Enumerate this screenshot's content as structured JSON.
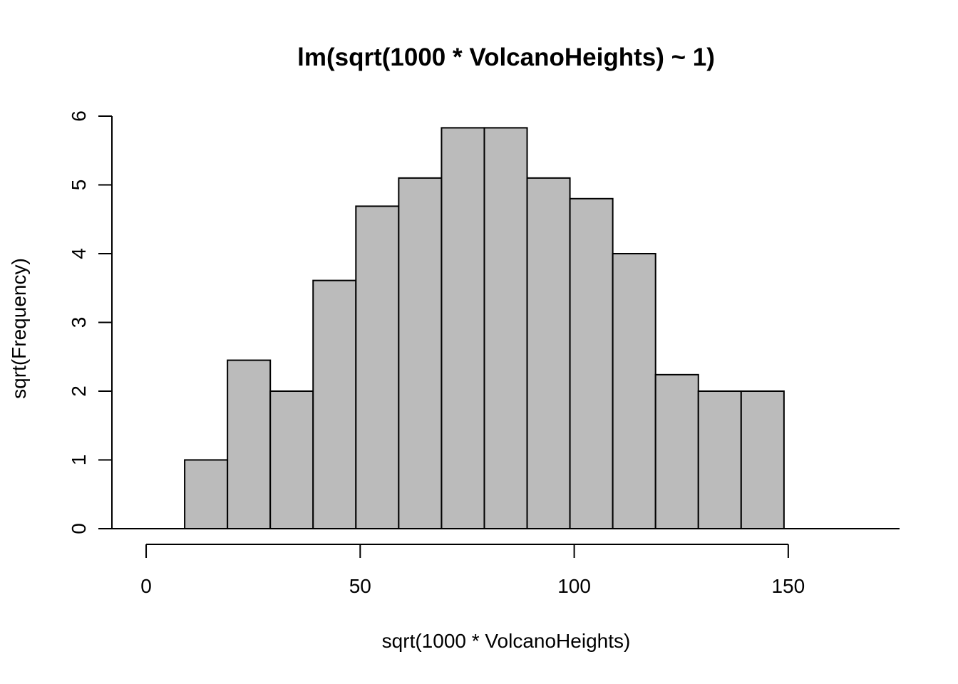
{
  "chart_data": {
    "type": "bar",
    "title": "lm(sqrt(1000 * VolcanoHeights) ~ 1)",
    "xlabel": "sqrt(1000 * VolcanoHeights)",
    "ylabel": "sqrt(Frequency)",
    "xlim": [
      -8,
      176
    ],
    "ylim": [
      0,
      6
    ],
    "bin_width": 10,
    "bin_left_edges": [
      -1,
      9,
      19,
      29,
      39,
      49,
      59,
      69,
      79,
      89,
      99,
      109,
      119,
      129,
      139,
      149,
      159
    ],
    "values": [
      0,
      1,
      2.45,
      2,
      3.61,
      4.69,
      5.1,
      5.83,
      5.83,
      5.1,
      4.8,
      4,
      2.24,
      2,
      2,
      0,
      0
    ],
    "x_ticks": [
      "0",
      "50",
      "100",
      "150"
    ],
    "y_ticks": [
      "0",
      "1",
      "2",
      "3",
      "4",
      "5",
      "6"
    ],
    "bar_fill": "#bbbbbb",
    "bar_stroke": "#000000",
    "grid": false,
    "legend": "none"
  }
}
